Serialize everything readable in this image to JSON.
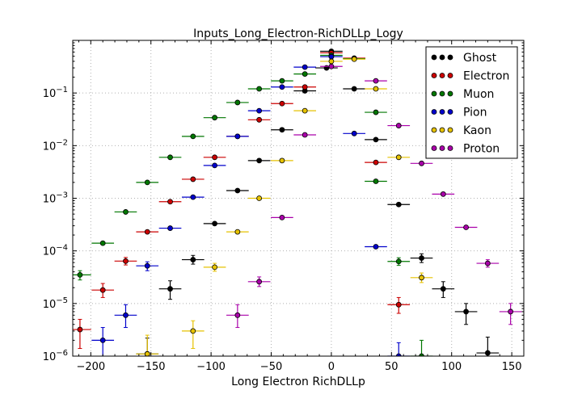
{
  "chart_data": {
    "type": "scatter",
    "title": "Inputs_Long_Electron-RichDLLp_Logy",
    "xlabel": "Long Electron RichDLLp",
    "ylabel": "",
    "xlim": [
      -215,
      160
    ],
    "ylim": [
      1e-06,
      1
    ],
    "yscale": "log",
    "grid": true,
    "legend_position": "top-right",
    "xerr": 9.3,
    "xticks": [
      {
        "value": -200,
        "label": "−200"
      },
      {
        "value": -150,
        "label": "−150"
      },
      {
        "value": -100,
        "label": "−100"
      },
      {
        "value": -50,
        "label": "−50"
      },
      {
        "value": 0,
        "label": "0"
      },
      {
        "value": 50,
        "label": "50"
      },
      {
        "value": 100,
        "label": "100"
      },
      {
        "value": 150,
        "label": "150"
      }
    ],
    "yticks": [
      {
        "value": 1e-06,
        "base": "10",
        "exp": "−6"
      },
      {
        "value": 1e-05,
        "base": "10",
        "exp": "−5"
      },
      {
        "value": 0.0001,
        "base": "10",
        "exp": "−4"
      },
      {
        "value": 0.001,
        "base": "10",
        "exp": "−3"
      },
      {
        "value": 0.01,
        "base": "10",
        "exp": "−2"
      },
      {
        "value": 0.1,
        "base": "10",
        "exp": "−1"
      }
    ],
    "series": [
      {
        "name": "Ghost",
        "color": "#000000",
        "points": [
          {
            "x": -153,
            "y": 1.1e-06,
            "ylo": 1e-06,
            "yhi": 2.2e-06
          },
          {
            "x": -134,
            "y": 1.9e-05,
            "ylo": 1.2e-05,
            "yhi": 2.7e-05
          },
          {
            "x": -115,
            "y": 6.8e-05,
            "ylo": 5.6e-05,
            "yhi": 8.2e-05
          },
          {
            "x": -97,
            "y": 0.00033
          },
          {
            "x": -78,
            "y": 0.0014
          },
          {
            "x": -60,
            "y": 0.0052
          },
          {
            "x": -41,
            "y": 0.02
          },
          {
            "x": -22,
            "y": 0.11
          },
          {
            "x": -4,
            "y": 0.3
          },
          {
            "x": 0,
            "y": 0.62
          },
          {
            "x": 19,
            "y": 0.12
          },
          {
            "x": 37,
            "y": 0.013
          },
          {
            "x": 56,
            "y": 0.00076
          },
          {
            "x": 75,
            "y": 7.3e-05,
            "ylo": 6e-05,
            "yhi": 8.8e-05
          },
          {
            "x": 93,
            "y": 1.9e-05,
            "ylo": 1.3e-05,
            "yhi": 2.6e-05
          },
          {
            "x": 112,
            "y": 7e-06,
            "ylo": 4e-06,
            "yhi": 1e-05
          },
          {
            "x": 130,
            "y": 1.15e-06,
            "ylo": 1e-06,
            "yhi": 2.3e-06
          }
        ]
      },
      {
        "name": "Electron",
        "color": "#cc0000",
        "points": [
          {
            "x": -209,
            "y": 3.2e-06,
            "ylo": 1.4e-06,
            "yhi": 5e-06
          },
          {
            "x": -190,
            "y": 1.8e-05,
            "ylo": 1.3e-05,
            "yhi": 2.4e-05
          },
          {
            "x": -171,
            "y": 6.4e-05,
            "ylo": 5.4e-05,
            "yhi": 7.5e-05
          },
          {
            "x": -153,
            "y": 0.00023
          },
          {
            "x": -134,
            "y": 0.00086
          },
          {
            "x": -115,
            "y": 0.0023
          },
          {
            "x": -97,
            "y": 0.006
          },
          {
            "x": -78,
            "y": 0.015
          },
          {
            "x": -60,
            "y": 0.031
          },
          {
            "x": -41,
            "y": 0.063
          },
          {
            "x": -22,
            "y": 0.13
          },
          {
            "x": 0,
            "y": 0.58
          },
          {
            "x": 19,
            "y": 0.46
          },
          {
            "x": 37,
            "y": 0.0048
          },
          {
            "x": 56,
            "y": 9.5e-06,
            "ylo": 6.5e-06,
            "yhi": 1.3e-05
          }
        ]
      },
      {
        "name": "Muon",
        "color": "#007700",
        "points": [
          {
            "x": -209,
            "y": 3.5e-05,
            "ylo": 2.8e-05,
            "yhi": 4.2e-05
          },
          {
            "x": -190,
            "y": 0.00014
          },
          {
            "x": -171,
            "y": 0.00055
          },
          {
            "x": -153,
            "y": 0.002
          },
          {
            "x": -134,
            "y": 0.006
          },
          {
            "x": -115,
            "y": 0.015
          },
          {
            "x": -97,
            "y": 0.034
          },
          {
            "x": -78,
            "y": 0.066
          },
          {
            "x": -60,
            "y": 0.12
          },
          {
            "x": -41,
            "y": 0.17
          },
          {
            "x": -22,
            "y": 0.23
          },
          {
            "x": 0,
            "y": 0.52
          },
          {
            "x": 19,
            "y": 0.45
          },
          {
            "x": 37,
            "y": 0.043
          },
          {
            "x": 37,
            "y": 0.0021
          },
          {
            "x": 56,
            "y": 6.3e-05,
            "ylo": 5.3e-05,
            "yhi": 7.4e-05
          },
          {
            "x": 75,
            "y": 1e-06,
            "ylo": 1e-06,
            "yhi": 2e-06
          }
        ]
      },
      {
        "name": "Pion",
        "color": "#0000cc",
        "points": [
          {
            "x": -190,
            "y": 2e-06,
            "ylo": 1e-06,
            "yhi": 3.5e-06
          },
          {
            "x": -171,
            "y": 6e-06,
            "ylo": 3.5e-06,
            "yhi": 9.5e-06
          },
          {
            "x": -153,
            "y": 5.2e-05,
            "ylo": 4.2e-05,
            "yhi": 6.2e-05
          },
          {
            "x": -134,
            "y": 0.00027
          },
          {
            "x": -115,
            "y": 0.00105
          },
          {
            "x": -97,
            "y": 0.0042
          },
          {
            "x": -78,
            "y": 0.015
          },
          {
            "x": -60,
            "y": 0.046
          },
          {
            "x": -41,
            "y": 0.13
          },
          {
            "x": -22,
            "y": 0.31
          },
          {
            "x": 0,
            "y": 0.49
          },
          {
            "x": 19,
            "y": 0.017
          },
          {
            "x": 37,
            "y": 0.00012
          },
          {
            "x": 56,
            "y": 1e-06,
            "ylo": 1e-06,
            "yhi": 1.8e-06
          }
        ]
      },
      {
        "name": "Kaon",
        "color": "#e6c200",
        "points": [
          {
            "x": -153,
            "y": 1.1e-06,
            "ylo": 1e-06,
            "yhi": 2.5e-06
          },
          {
            "x": -115,
            "y": 3e-06,
            "ylo": 1.4e-06,
            "yhi": 4.7e-06
          },
          {
            "x": -97,
            "y": 4.9e-05,
            "ylo": 4.1e-05,
            "yhi": 5.8e-05
          },
          {
            "x": -78,
            "y": 0.00023
          },
          {
            "x": -60,
            "y": 0.001
          },
          {
            "x": -41,
            "y": 0.0052
          },
          {
            "x": -22,
            "y": 0.046
          },
          {
            "x": 0,
            "y": 0.4
          },
          {
            "x": 19,
            "y": 0.44
          },
          {
            "x": 37,
            "y": 0.12
          },
          {
            "x": 56,
            "y": 0.006
          },
          {
            "x": 75,
            "y": 3.1e-05,
            "ylo": 2.5e-05,
            "yhi": 3.8e-05
          }
        ]
      },
      {
        "name": "Proton",
        "color": "#aa00aa",
        "points": [
          {
            "x": -78,
            "y": 6e-06,
            "ylo": 3.5e-06,
            "yhi": 9.5e-06
          },
          {
            "x": -60,
            "y": 2.6e-05,
            "ylo": 2.1e-05,
            "yhi": 3.2e-05
          },
          {
            "x": -41,
            "y": 0.00043
          },
          {
            "x": -22,
            "y": 0.016
          },
          {
            "x": 0,
            "y": 0.32
          },
          {
            "x": 37,
            "y": 0.17
          },
          {
            "x": 56,
            "y": 0.024
          },
          {
            "x": 75,
            "y": 0.0046
          },
          {
            "x": 93,
            "y": 0.0012
          },
          {
            "x": 112,
            "y": 0.00028
          },
          {
            "x": 130,
            "y": 5.8e-05,
            "ylo": 4.9e-05,
            "yhi": 6.8e-05
          },
          {
            "x": 149,
            "y": 7e-06,
            "ylo": 4e-06,
            "yhi": 1e-05
          }
        ]
      }
    ]
  }
}
